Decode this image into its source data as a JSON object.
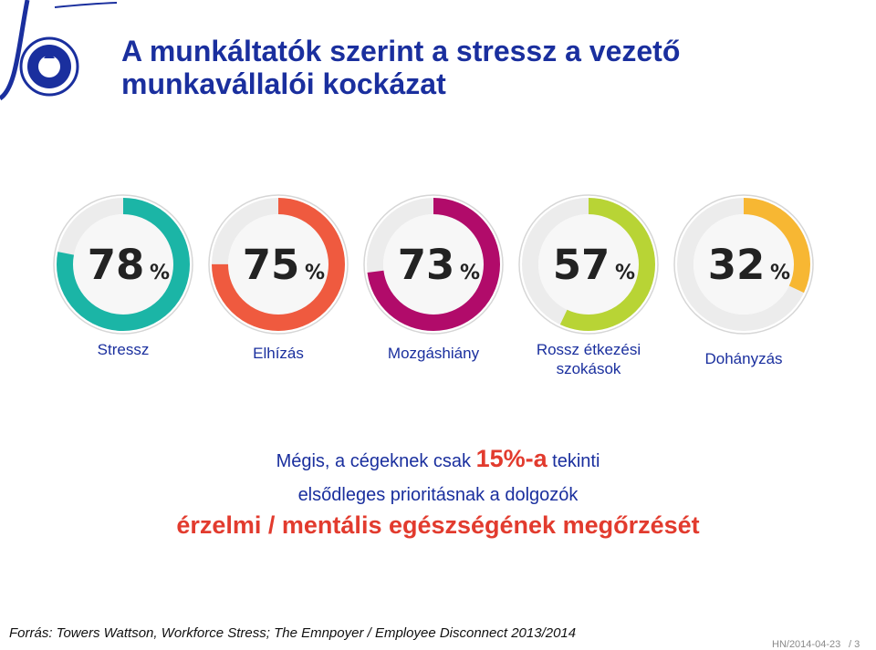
{
  "slide": {
    "title": "A munkáltatók szerint a stressz a vezető munkavállalói kockázat",
    "message": {
      "part1": "Mégis, a cégeknek csak ",
      "highlight": "15%-a",
      "part2": " tekinti",
      "line2": "elsődleges prioritásnak a dolgozók",
      "line3": "érzelmi / mentális egészségének megőrzését"
    },
    "source": "Forrás: Towers Wattson, Workforce Stress; The Emnpoyer / Employee Disconnect 2013/2014",
    "footer": {
      "date": "HN/2014-04-23",
      "page": "/ 3"
    },
    "logo": {
      "icon": "tetra-pak-protects-whats-good-logo",
      "colors": [
        "#1a2f9e",
        "#ffffff"
      ]
    }
  },
  "chart_data": {
    "type": "pie",
    "series": [
      {
        "name": "Stressz",
        "value": 78,
        "unit": "%",
        "color": "#1bb5a6"
      },
      {
        "name": "Elhízás",
        "value": 75,
        "unit": "%",
        "color": "#ef5a3f"
      },
      {
        "name": "Mozgáshiány",
        "value": 73,
        "unit": "%",
        "color": "#b10b6a"
      },
      {
        "name": "Rossz étkezési\nszokások",
        "value": 57,
        "unit": "%",
        "color": "#b8d435"
      },
      {
        "name": "Dohányzás",
        "value": 32,
        "unit": "%",
        "color": "#f7b733"
      }
    ],
    "track_color": "#ececec",
    "inner_color": "#f7f7f7"
  }
}
